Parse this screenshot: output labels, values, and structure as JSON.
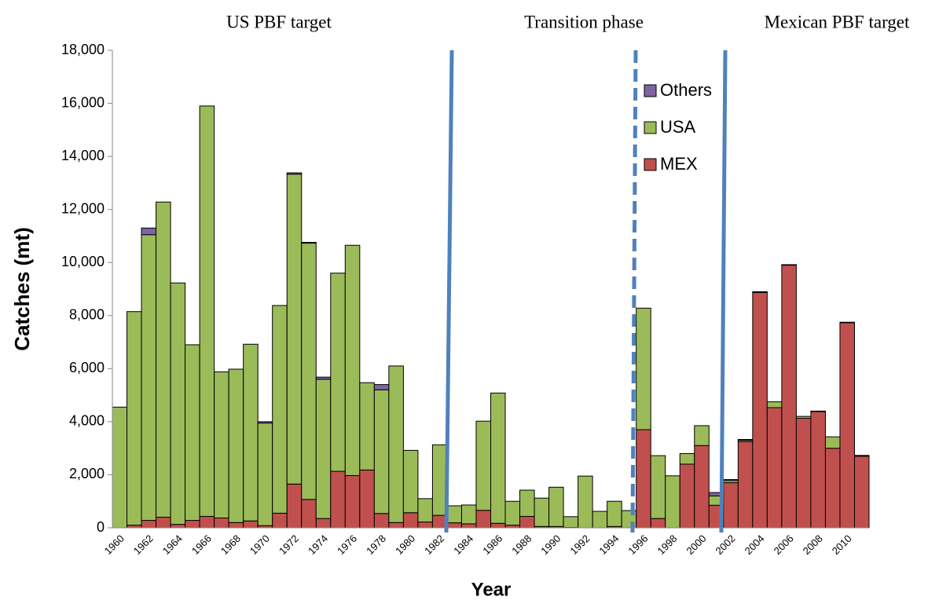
{
  "chart_data": {
    "type": "stacked_bar",
    "annotations": [
      "US PBF target",
      "Transition phase",
      "Mexican PBF target"
    ],
    "y_label": "Catches (mt)",
    "x_label": "Year",
    "categories": [
      "1960",
      null,
      "1962",
      null,
      "1964",
      null,
      "1966",
      null,
      "1968",
      null,
      "1970",
      null,
      "1972",
      null,
      "1974",
      null,
      "1976",
      null,
      "1978",
      null,
      "1980",
      null,
      "1982",
      null,
      "1984",
      null,
      "1986",
      null,
      "1988",
      null,
      "1990",
      null,
      "1992",
      null,
      "1994",
      null,
      "1996",
      null,
      "1998",
      null,
      "2000",
      null,
      "2002",
      null,
      "2004",
      null,
      "2006",
      null,
      "2008",
      null,
      "2010",
      null
    ],
    "series": [
      {
        "name": "MEX",
        "color": "#c0504d",
        "values": [
          0,
          100,
          280,
          400,
          130,
          280,
          430,
          370,
          200,
          260,
          80,
          550,
          1650,
          1070,
          350,
          2130,
          1970,
          2180,
          540,
          200,
          570,
          220,
          470,
          190,
          150,
          660,
          170,
          100,
          430,
          50,
          50,
          10,
          0,
          0,
          50,
          0,
          3700,
          350,
          0,
          2400,
          3100,
          850,
          1700,
          3250,
          8870,
          4530,
          9900,
          4130,
          4380,
          3000,
          7730,
          2700
        ]
      },
      {
        "name": "USA",
        "color": "#9bbb59",
        "values": [
          4550,
          8050,
          10770,
          11880,
          9100,
          6620,
          15470,
          5510,
          5780,
          6660,
          3870,
          7830,
          11680,
          9660,
          5250,
          7470,
          8680,
          3290,
          4660,
          5900,
          2350,
          880,
          2660,
          640,
          710,
          3360,
          4910,
          900,
          990,
          1070,
          1480,
          410,
          1950,
          620,
          950,
          650,
          4580,
          2370,
          1960,
          400,
          750,
          350,
          80,
          50,
          30,
          220,
          20,
          70,
          20,
          430,
          20,
          30
        ]
      },
      {
        "name": "Others",
        "color": "#8064a2",
        "values": [
          0,
          0,
          250,
          0,
          0,
          0,
          0,
          0,
          0,
          0,
          50,
          0,
          50,
          30,
          80,
          0,
          0,
          0,
          200,
          0,
          0,
          0,
          0,
          0,
          0,
          0,
          0,
          0,
          0,
          0,
          0,
          0,
          0,
          0,
          0,
          0,
          0,
          0,
          0,
          0,
          0,
          130,
          40,
          30,
          0,
          0,
          0,
          0,
          0,
          0,
          0,
          0
        ]
      }
    ],
    "ylim": [
      0,
      18000
    ],
    "yticks": [
      0,
      {
        "value": 2000,
        "label": "2,000"
      },
      {
        "value": 4000,
        "label": "4,000"
      },
      {
        "value": 6000,
        "label": "6,000"
      },
      {
        "value": 8000,
        "label": "8,000"
      },
      {
        "value": 10000,
        "label": "10,000"
      },
      {
        "value": 12000,
        "label": "12,000"
      },
      {
        "value": 14000,
        "label": "14,000"
      },
      {
        "value": 16000,
        "label": "16,000"
      },
      {
        "value": 18000,
        "label": "18,000"
      }
    ],
    "grid": false
  }
}
